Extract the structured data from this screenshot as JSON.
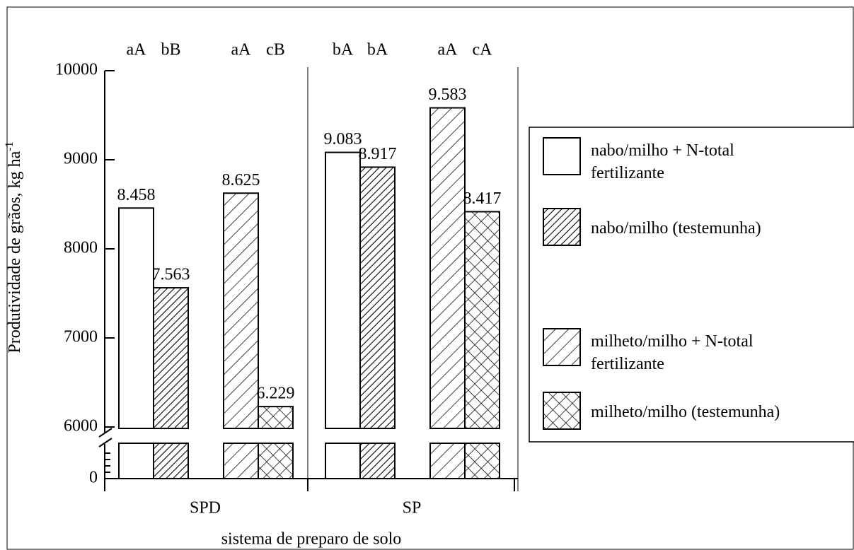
{
  "chart_data": {
    "type": "bar",
    "categories": [
      "SPD",
      "SP"
    ],
    "xlabel": "sistema de preparo de solo",
    "ylabel": "Produtividade de grãos, kg ha",
    "ylabel_superscript": "-1",
    "ylim": [
      0,
      10000
    ],
    "yticks": [
      0,
      6000,
      7000,
      8000,
      9000,
      10000
    ],
    "ybreak": 6000,
    "series": [
      {
        "name": "nabo/milho + N-total\nfertilizante",
        "color": "#000000",
        "pattern": "none",
        "values": [
          8458,
          9083
        ],
        "value_labels": [
          "8.458",
          "9.083"
        ],
        "letters": [
          "aA",
          "bA"
        ]
      },
      {
        "name": "nabo/milho (testemunha)",
        "color": "#000000",
        "pattern": "dense-hatch",
        "values": [
          7563,
          8917
        ],
        "value_labels": [
          "7.563",
          "8.917"
        ],
        "letters": [
          "bB",
          "bA"
        ]
      },
      {
        "name": "milheto/milho + N-total\nfertilizante",
        "color": "#000000",
        "pattern": "hatch",
        "values": [
          8625,
          9583
        ],
        "value_labels": [
          "8.625",
          "9.583"
        ],
        "letters": [
          "aA",
          "aA"
        ]
      },
      {
        "name": "milheto/milho (testemunha)",
        "color": "#000000",
        "pattern": "crosshatch",
        "values": [
          6229,
          8417
        ],
        "value_labels": [
          "6.229",
          "8.417"
        ],
        "letters": [
          "cB",
          "cA"
        ]
      }
    ]
  }
}
